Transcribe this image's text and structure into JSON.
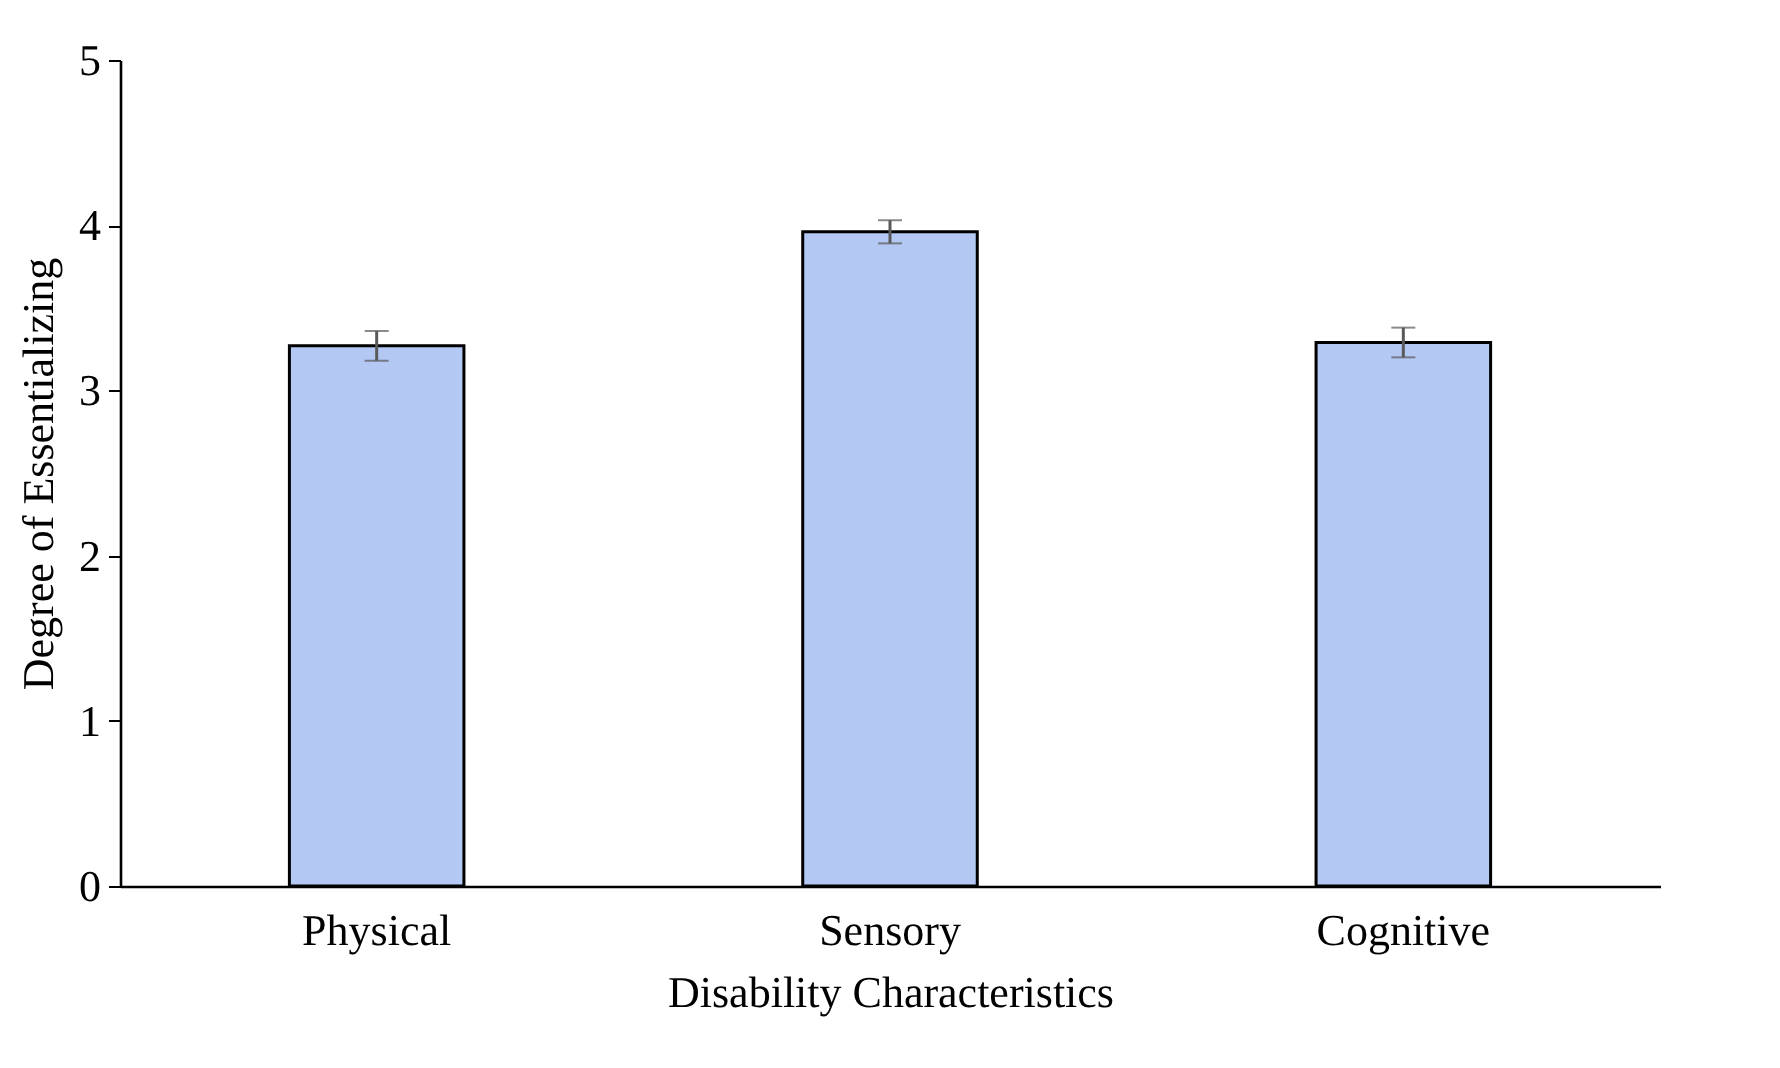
{
  "chart_data": {
    "type": "bar",
    "xlabel": "Disability Characteristics",
    "ylabel": "Degree of Essentializing",
    "categories": [
      "Physical",
      "Sensory",
      "Cognitive"
    ],
    "values": [
      3.27,
      3.96,
      3.29
    ],
    "errors": [
      0.09,
      0.07,
      0.09
    ],
    "color": "#b4c8f4",
    "ylim": [
      0,
      5
    ],
    "yticks": [
      0,
      1,
      2,
      3,
      4,
      5
    ],
    "grid": false
  }
}
